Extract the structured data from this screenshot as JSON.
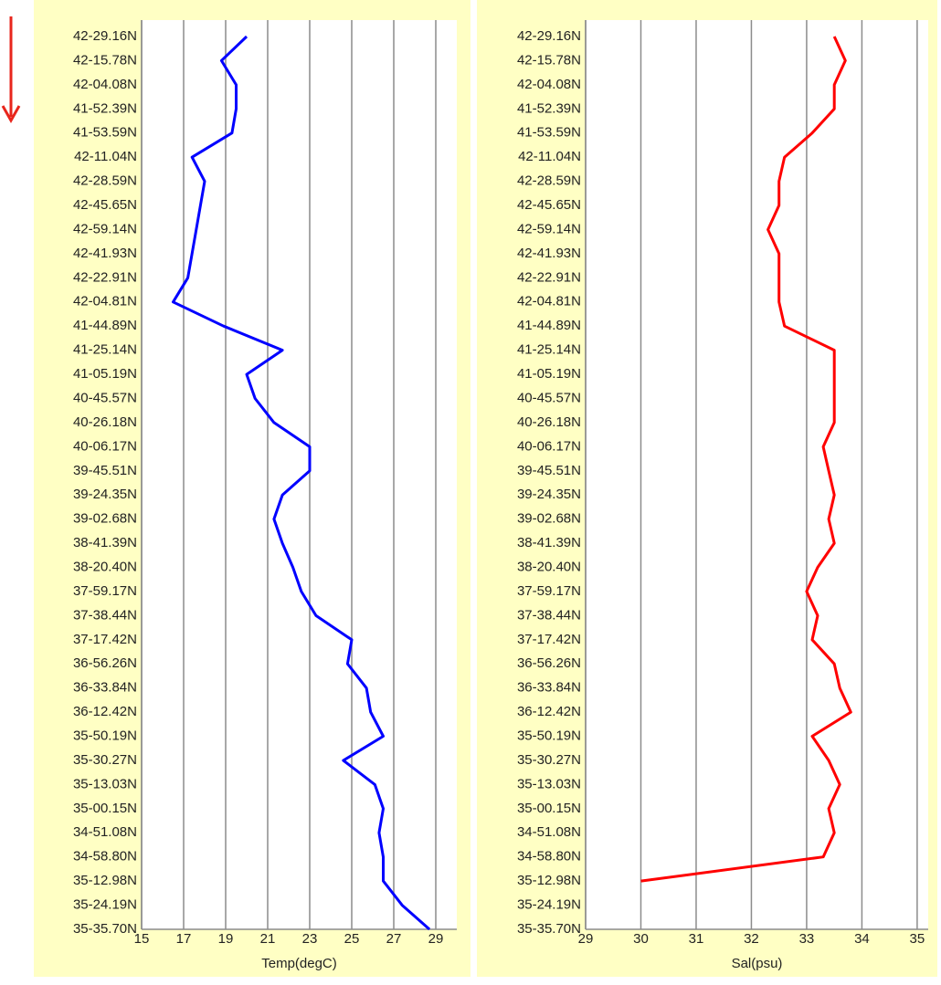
{
  "chart_data": [
    {
      "type": "line",
      "xlabel": "Temp(degC)",
      "color": "#0000ff",
      "categories": [
        "42-29.16N",
        "42-15.78N",
        "42-04.08N",
        "41-52.39N",
        "41-53.59N",
        "42-11.04N",
        "42-28.59N",
        "42-45.65N",
        "42-59.14N",
        "42-41.93N",
        "42-22.91N",
        "42-04.81N",
        "41-44.89N",
        "41-25.14N",
        "41-05.19N",
        "40-45.57N",
        "40-26.18N",
        "40-06.17N",
        "39-45.51N",
        "39-24.35N",
        "39-02.68N",
        "38-41.39N",
        "38-20.40N",
        "37-59.17N",
        "37-38.44N",
        "37-17.42N",
        "36-56.26N",
        "36-33.84N",
        "36-12.42N",
        "35-50.19N",
        "35-30.27N",
        "35-13.03N",
        "35-00.15N",
        "34-51.08N",
        "34-58.80N",
        "35-12.98N",
        "35-24.19N",
        "35-35.70N"
      ],
      "values": [
        20.0,
        18.8,
        19.5,
        19.5,
        19.3,
        17.4,
        18.0,
        17.8,
        17.6,
        17.4,
        17.2,
        16.5,
        18.9,
        21.7,
        20.0,
        20.4,
        21.3,
        23.0,
        23.0,
        21.7,
        21.3,
        21.7,
        22.2,
        22.6,
        23.3,
        25.0,
        24.8,
        25.7,
        25.9,
        26.5,
        24.6,
        26.1,
        26.5,
        26.3,
        26.5,
        26.5,
        27.4,
        28.7
      ],
      "xlim": [
        15,
        30
      ],
      "xticks": [
        15,
        17,
        19,
        21,
        23,
        25,
        27,
        29
      ],
      "grid": true
    },
    {
      "type": "line",
      "xlabel": "Sal(psu)",
      "color": "#ff0000",
      "categories": [
        "42-29.16N",
        "42-15.78N",
        "42-04.08N",
        "41-52.39N",
        "41-53.59N",
        "42-11.04N",
        "42-28.59N",
        "42-45.65N",
        "42-59.14N",
        "42-41.93N",
        "42-22.91N",
        "42-04.81N",
        "41-44.89N",
        "41-25.14N",
        "41-05.19N",
        "40-45.57N",
        "40-26.18N",
        "40-06.17N",
        "39-45.51N",
        "39-24.35N",
        "39-02.68N",
        "38-41.39N",
        "38-20.40N",
        "37-59.17N",
        "37-38.44N",
        "37-17.42N",
        "36-56.26N",
        "36-33.84N",
        "36-12.42N",
        "35-50.19N",
        "35-30.27N",
        "35-13.03N",
        "35-00.15N",
        "34-51.08N",
        "34-58.80N",
        "35-12.98N",
        "35-24.19N",
        "35-35.70N"
      ],
      "values": [
        33.5,
        33.7,
        33.5,
        33.5,
        33.1,
        32.6,
        32.5,
        32.5,
        32.3,
        32.5,
        32.5,
        32.5,
        32.6,
        33.5,
        33.5,
        33.5,
        33.5,
        33.3,
        33.4,
        33.5,
        33.4,
        33.5,
        33.2,
        33.0,
        33.2,
        33.1,
        33.5,
        33.6,
        33.8,
        33.1,
        33.4,
        33.6,
        33.4,
        33.5,
        33.3,
        30.0,
        null,
        null
      ],
      "xlim": [
        29,
        35.2
      ],
      "xticks": [
        29,
        30,
        31,
        32,
        33,
        34,
        35
      ],
      "grid": true
    }
  ]
}
